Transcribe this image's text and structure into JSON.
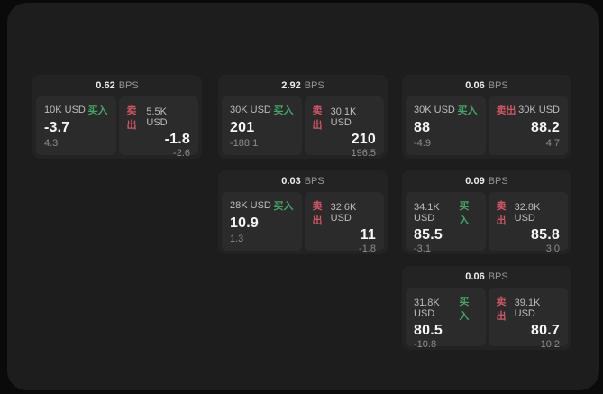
{
  "page": {
    "outer_background": "#0a0a0a",
    "surface_background": "#1d1d1d"
  },
  "labels": {
    "bps": "BPS",
    "buy": "买入",
    "sell": "卖出"
  },
  "colors": {
    "buy_green": "#44a567",
    "sell_red": "#d05666",
    "card_background": "#232323",
    "panel_background": "#2b2b2b"
  },
  "cards": [
    {
      "bps": "0.62",
      "buy": {
        "amount": "10K USD",
        "price": "-3.7",
        "change": "4.3"
      },
      "sell": {
        "amount": "5.5K USD",
        "price": "-1.8",
        "change": "-2.6"
      }
    },
    {
      "bps": "2.92",
      "buy": {
        "amount": "30K USD",
        "price": "201",
        "change": "-188.1"
      },
      "sell": {
        "amount": "30.1K USD",
        "price": "210",
        "change": "196.5"
      }
    },
    {
      "bps": "0.06",
      "buy": {
        "amount": "30K USD",
        "price": "88",
        "change": "-4.9"
      },
      "sell": {
        "amount": "30K USD",
        "price": "88.2",
        "change": "4.7"
      }
    },
    {
      "bps": "0.03",
      "buy": {
        "amount": "28K USD",
        "price": "10.9",
        "change": "1.3"
      },
      "sell": {
        "amount": "32.6K USD",
        "price": "11",
        "change": "-1.8"
      }
    },
    {
      "bps": "0.09",
      "buy": {
        "amount": "34.1K USD",
        "price": "85.5",
        "change": "-3.1"
      },
      "sell": {
        "amount": "32.8K USD",
        "price": "85.8",
        "change": "3.0"
      }
    },
    {
      "bps": "0.06",
      "buy": {
        "amount": "31.8K USD",
        "price": "80.5",
        "change": "-10.8"
      },
      "sell": {
        "amount": "39.1K USD",
        "price": "80.7",
        "change": "10.2"
      }
    }
  ]
}
